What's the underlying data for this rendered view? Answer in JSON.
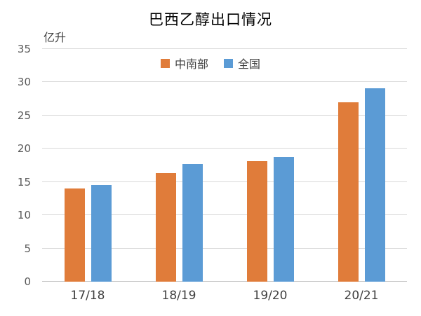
{
  "chart_data": {
    "type": "bar",
    "title": "巴西乙醇出口情况",
    "ylabel": "亿升",
    "xlabel": "",
    "categories": [
      "17/18",
      "18/19",
      "19/20",
      "20/21"
    ],
    "series": [
      {
        "name": "中南部",
        "color": "#e07c3a",
        "values": [
          14.0,
          16.3,
          18.1,
          27.0
        ]
      },
      {
        "name": "全国",
        "color": "#5b9bd5",
        "values": [
          14.5,
          17.7,
          18.8,
          29.1
        ]
      }
    ],
    "ylim": [
      0,
      35
    ],
    "ytick_step": 5,
    "yticks": [
      "0",
      "5",
      "10",
      "15",
      "20",
      "25",
      "30",
      "35"
    ],
    "grid": "horizontal",
    "legend_position": "top-center",
    "gridline_color": "#d9d9d9",
    "axis_line_color": "#bfbfbf",
    "tick_label_color": "#595959"
  }
}
